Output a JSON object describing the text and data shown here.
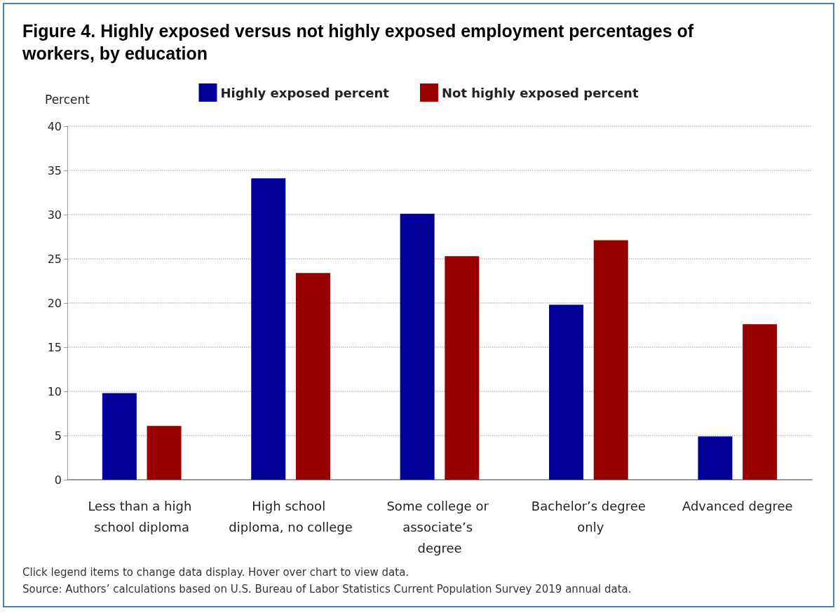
{
  "chart_data": {
    "type": "bar",
    "title": "Figure 4. Highly exposed versus not highly exposed employment percentages of workers, by education",
    "ylabel": "Percent",
    "categories": [
      "Less than a high school diploma",
      "High school diploma, no college",
      "Some college or associate’s degree",
      "Bachelor’s degree only",
      "Advanced degree"
    ],
    "series": [
      {
        "name": "Highly exposed percent",
        "color": "#000099",
        "values": [
          9.8,
          34.1,
          30.1,
          19.8,
          4.9
        ]
      },
      {
        "name": "Not highly exposed percent",
        "color": "#990000",
        "values": [
          6.1,
          23.4,
          25.3,
          27.1,
          17.6
        ]
      }
    ],
    "ylim": [
      0,
      40
    ],
    "yticks": [
      0,
      5,
      10,
      15,
      20,
      25,
      30,
      35,
      40
    ],
    "grid": "y",
    "legend": "top",
    "annotations": [
      "Click legend items to change data display. Hover over chart to view data.",
      "Source: Authors’ calculations based on U.S. Bureau of Labor Statistics Current Population Survey 2019 annual data."
    ]
  }
}
